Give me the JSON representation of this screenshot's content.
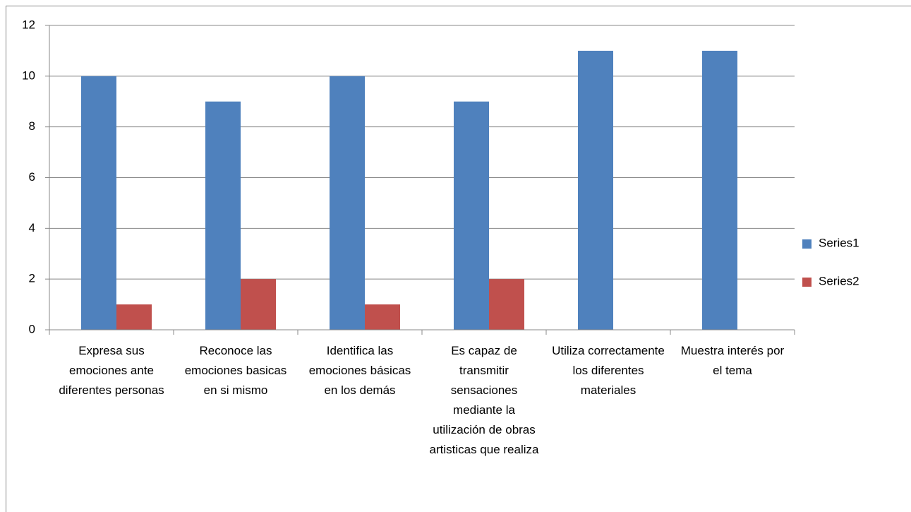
{
  "chart_data": {
    "type": "bar",
    "categories": [
      "Expresa sus emociones ante diferentes personas",
      "Reconoce las emociones basicas en si mismo",
      "Identifica las emociones básicas en los demás",
      "Es capaz de transmitir sensaciones mediante la utilización de obras artisticas que realiza",
      "Utiliza correctamente los diferentes materiales",
      "Muestra interés por el tema"
    ],
    "series": [
      {
        "name": "Series1",
        "color": "#4f81bd",
        "values": [
          10,
          9,
          10,
          9,
          11,
          11
        ]
      },
      {
        "name": "Series2",
        "color": "#c0504d",
        "values": [
          1,
          2,
          1,
          2,
          null,
          null
        ]
      }
    ],
    "ylim": [
      0,
      12
    ],
    "yticks": [
      0,
      2,
      4,
      6,
      8,
      10,
      12
    ],
    "grid": true,
    "legend": "right"
  }
}
